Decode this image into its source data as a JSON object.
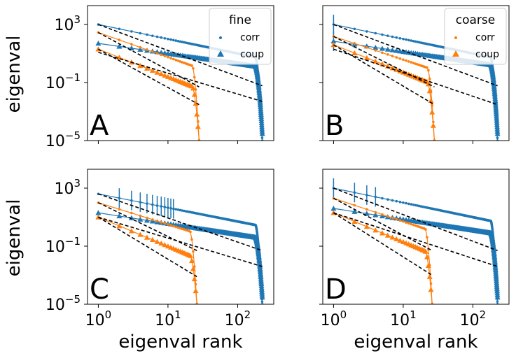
{
  "chart_data": {
    "type": "scatter",
    "xscale": "log",
    "yscale": "log",
    "xlim": [
      0.7,
      330
    ],
    "ylim": [
      1e-05,
      20000
    ],
    "xticks": [
      1,
      10,
      100
    ],
    "yticks": [
      1e-05,
      0.1,
      1000
    ],
    "xtick_labels": [
      {
        "base": "10",
        "exp": "0"
      },
      {
        "base": "10",
        "exp": "1"
      },
      {
        "base": "10",
        "exp": "2"
      }
    ],
    "ytick_labels": [
      {
        "base": "10",
        "exp": "−5"
      },
      {
        "base": "10",
        "exp": "−1"
      },
      {
        "base": "10",
        "exp": "3"
      }
    ],
    "xlabel": "eigenval rank",
    "ylabel": "eigenval",
    "colors": {
      "blue": "#1f77b4",
      "orange": "#ff7f0e",
      "fit": "#000000"
    },
    "panels": [
      {
        "letter": "A",
        "legend": {
          "title": "fine",
          "entries": [
            "corr",
            "coup"
          ]
        },
        "corr": {
          "n": 226,
          "start": 1000,
          "slope": 1.0,
          "drop": 1e-05,
          "spikes": []
        },
        "coup": {
          "n": 226,
          "start": 50,
          "slope": 0.7,
          "drop": 3e-05,
          "spikes": []
        },
        "corr_small": {
          "n": 28,
          "start": 280,
          "slope": 1.7,
          "drop": 1e-05,
          "spikes": []
        },
        "coup_small": {
          "n": 28,
          "start": 20,
          "slope": 1.9,
          "drop": 1e-05,
          "spikes": []
        },
        "fits": [
          {
            "x": [
              1,
              226
            ],
            "y": [
              1000,
              0.06
            ]
          },
          {
            "x": [
              1,
              226
            ],
            "y": [
              12,
              0.005
            ]
          },
          {
            "x": [
              1,
              28
            ],
            "y": [
              280,
              0.05
            ]
          },
          {
            "x": [
              1,
              28
            ],
            "y": [
              20,
              0.003
            ]
          }
        ]
      },
      {
        "letter": "B",
        "legend": {
          "title": "coarse",
          "entries": [
            "corr",
            "coup"
          ]
        },
        "corr": {
          "n": 226,
          "start": 1000,
          "slope": 1.0,
          "drop": 1e-05,
          "spikes": [
            1
          ]
        },
        "coup": {
          "n": 226,
          "start": 70,
          "slope": 0.72,
          "drop": 3e-05,
          "spikes": [
            1
          ]
        },
        "corr_small": {
          "n": 28,
          "start": 150,
          "slope": 1.6,
          "drop": 1e-05,
          "spikes": []
        },
        "coup_small": {
          "n": 28,
          "start": 40,
          "slope": 1.9,
          "drop": 1e-05,
          "spikes": []
        },
        "fits": [
          {
            "x": [
              1,
              226
            ],
            "y": [
              1000,
              0.06
            ]
          },
          {
            "x": [
              1,
              226
            ],
            "y": [
              20,
              0.003
            ]
          },
          {
            "x": [
              1,
              28
            ],
            "y": [
              150,
              0.05
            ]
          },
          {
            "x": [
              1,
              28
            ],
            "y": [
              40,
              0.003
            ]
          }
        ]
      },
      {
        "letter": "C",
        "legend": null,
        "corr": {
          "n": 226,
          "start": 400,
          "slope": 0.95,
          "drop": 1e-05,
          "spikes": [
            2,
            3,
            4,
            5,
            6,
            7,
            8,
            9,
            10,
            11,
            12
          ]
        },
        "coup": {
          "n": 226,
          "start": 20,
          "slope": 0.75,
          "drop": 3e-05,
          "spikes": []
        },
        "corr_small": {
          "n": 26,
          "start": 100,
          "slope": 1.5,
          "drop": 1e-05,
          "spikes": []
        },
        "coup_small": {
          "n": 26,
          "start": 10,
          "slope": 2.0,
          "drop": 1e-05,
          "spikes": []
        },
        "fits": [
          {
            "x": [
              1,
              226
            ],
            "y": [
              400,
              0.05
            ]
          },
          {
            "x": [
              1,
              226
            ],
            "y": [
              10,
              0.004
            ]
          },
          {
            "x": [
              1,
              26
            ],
            "y": [
              100,
              0.05
            ]
          },
          {
            "x": [
              1,
              26
            ],
            "y": [
              10,
              0.0008
            ]
          }
        ]
      },
      {
        "letter": "D",
        "legend": null,
        "corr": {
          "n": 226,
          "start": 1000,
          "slope": 1.0,
          "drop": 1e-05,
          "spikes": [
            1,
            2,
            3,
            4
          ]
        },
        "coup": {
          "n": 226,
          "start": 40,
          "slope": 0.75,
          "drop": 3e-05,
          "spikes": []
        },
        "corr_small": {
          "n": 26,
          "start": 200,
          "slope": 1.6,
          "drop": 1e-05,
          "spikes": []
        },
        "coup_small": {
          "n": 26,
          "start": 20,
          "slope": 2.0,
          "drop": 1e-05,
          "spikes": []
        },
        "fits": [
          {
            "x": [
              1,
              226
            ],
            "y": [
              1000,
              0.05
            ]
          },
          {
            "x": [
              1,
              226
            ],
            "y": [
              20,
              0.004
            ]
          },
          {
            "x": [
              1,
              26
            ],
            "y": [
              200,
              0.05
            ]
          },
          {
            "x": [
              1,
              26
            ],
            "y": [
              20,
              0.001
            ]
          }
        ]
      }
    ]
  }
}
